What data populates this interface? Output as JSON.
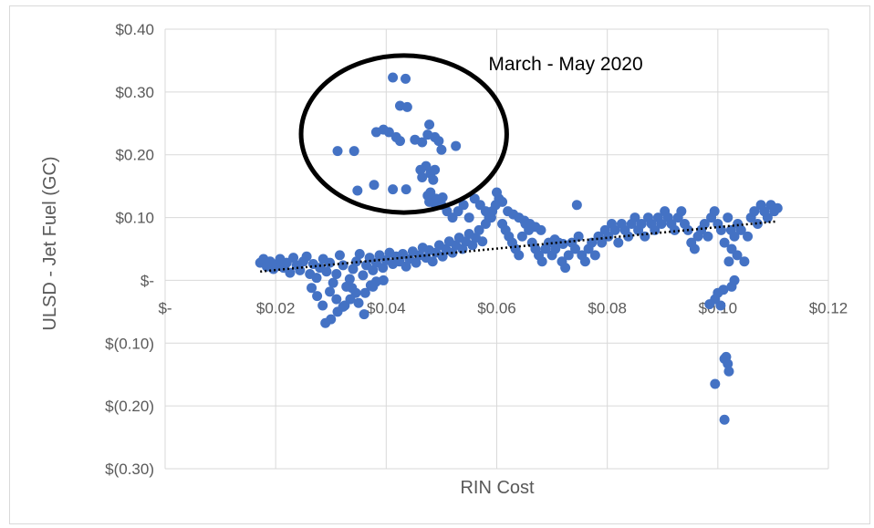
{
  "chart_data": {
    "type": "scatter",
    "title": "",
    "xlabel": "RIN Cost",
    "ylabel": "ULSD - Jet Fuel (GC)",
    "xlim": [
      0,
      0.12
    ],
    "ylim": [
      -0.3,
      0.4
    ],
    "x_ticks": [
      {
        "value": 0,
        "label": "$-"
      },
      {
        "value": 0.02,
        "label": "$0.02"
      },
      {
        "value": 0.04,
        "label": "$0.04"
      },
      {
        "value": 0.06,
        "label": "$0.06"
      },
      {
        "value": 0.08,
        "label": "$0.08"
      },
      {
        "value": 0.1,
        "label": "$0.10"
      },
      {
        "value": 0.12,
        "label": "$0.12"
      }
    ],
    "y_ticks": [
      {
        "value": 0.4,
        "label": "$0.40"
      },
      {
        "value": 0.3,
        "label": "$0.30"
      },
      {
        "value": 0.2,
        "label": "$0.20"
      },
      {
        "value": 0.1,
        "label": "$0.10"
      },
      {
        "value": 0,
        "label": "$-"
      },
      {
        "value": -0.1,
        "label": "$(0.10)"
      },
      {
        "value": -0.2,
        "label": "$(0.20)"
      },
      {
        "value": -0.3,
        "label": "$(0.30)"
      }
    ],
    "grid": {
      "vertical": true,
      "horizontal": true
    },
    "colors": {
      "points": "#4472c4",
      "trend": "#000000",
      "grid": "#d9d9d9",
      "circle": "#000000"
    },
    "series": [
      {
        "points": [
          [
            0.0172,
            0.028
          ],
          [
            0.0178,
            0.034
          ],
          [
            0.0184,
            0.022
          ],
          [
            0.019,
            0.03
          ],
          [
            0.0196,
            0.018
          ],
          [
            0.0202,
            0.026
          ],
          [
            0.0208,
            0.034
          ],
          [
            0.0214,
            0.02
          ],
          [
            0.022,
            0.028
          ],
          [
            0.0226,
            0.012
          ],
          [
            0.0232,
            0.036
          ],
          [
            0.0238,
            0.024
          ],
          [
            0.0244,
            0.016
          ],
          [
            0.025,
            0.03
          ],
          [
            0.0256,
            0.038
          ],
          [
            0.0262,
            0.01
          ],
          [
            0.0268,
            0.026
          ],
          [
            0.0274,
            0.004
          ],
          [
            0.028,
            0.02
          ],
          [
            0.0286,
            0.034
          ],
          [
            0.0292,
            0.014
          ],
          [
            0.0298,
            0.028
          ],
          [
            0.0304,
            -0.004
          ],
          [
            0.031,
            0.01
          ],
          [
            0.0316,
            0.04
          ],
          [
            0.0322,
            0.024
          ],
          [
            0.0328,
            -0.01
          ],
          [
            0.0334,
            0.002
          ],
          [
            0.034,
            0.018
          ],
          [
            0.0346,
            0.03
          ],
          [
            0.0352,
            0.042
          ],
          [
            0.0358,
            0.008
          ],
          [
            0.0364,
            0.024
          ],
          [
            0.037,
            0.036
          ],
          [
            0.0376,
            0.016
          ],
          [
            0.0382,
            0.028
          ],
          [
            0.0388,
            0.04
          ],
          [
            0.0394,
            0.02
          ],
          [
            0.04,
            0.032
          ],
          [
            0.0406,
            0.044
          ],
          [
            0.0412,
            0.026
          ],
          [
            0.0418,
            0.038
          ],
          [
            0.0424,
            0.03
          ],
          [
            0.043,
            0.042
          ],
          [
            0.0436,
            0.022
          ],
          [
            0.0442,
            0.034
          ],
          [
            0.0448,
            0.046
          ],
          [
            0.0454,
            0.028
          ],
          [
            0.046,
            0.04
          ],
          [
            0.0466,
            0.052
          ],
          [
            0.0472,
            0.036
          ],
          [
            0.0478,
            0.048
          ],
          [
            0.0484,
            0.03
          ],
          [
            0.049,
            0.044
          ],
          [
            0.0496,
            0.056
          ],
          [
            0.0502,
            0.038
          ],
          [
            0.0508,
            0.05
          ],
          [
            0.0514,
            0.062
          ],
          [
            0.052,
            0.044
          ],
          [
            0.0526,
            0.056
          ],
          [
            0.0532,
            0.068
          ],
          [
            0.0538,
            0.05
          ],
          [
            0.0544,
            0.062
          ],
          [
            0.055,
            0.074
          ],
          [
            0.0556,
            0.056
          ],
          [
            0.0562,
            0.068
          ],
          [
            0.0568,
            0.08
          ],
          [
            0.0574,
            0.062
          ],
          [
            0.058,
            0.09
          ],
          [
            0.0586,
            0.1
          ],
          [
            0.0592,
            0.11
          ],
          [
            0.0598,
            0.12
          ],
          [
            0.0604,
            0.13
          ],
          [
            0.061,
            0.09
          ],
          [
            0.0616,
            0.08
          ],
          [
            0.0622,
            0.07
          ],
          [
            0.0628,
            0.06
          ],
          [
            0.0634,
            0.05
          ],
          [
            0.064,
            0.04
          ],
          [
            0.0646,
            0.07
          ],
          [
            0.0652,
            0.09
          ],
          [
            0.0658,
            0.08
          ],
          [
            0.0664,
            0.06
          ],
          [
            0.067,
            0.05
          ],
          [
            0.0676,
            0.04
          ],
          [
            0.0682,
            0.03
          ],
          [
            0.0688,
            0.05
          ],
          [
            0.0694,
            0.06
          ],
          [
            0.07,
            0.04
          ],
          [
            0.0706,
            0.05
          ],
          [
            0.0712,
            0.06
          ],
          [
            0.0718,
            0.03
          ],
          [
            0.0724,
            0.02
          ],
          [
            0.073,
            0.04
          ],
          [
            0.0736,
            0.06
          ],
          [
            0.0742,
            0.05
          ],
          [
            0.0748,
            0.07
          ],
          [
            0.0754,
            0.04
          ],
          [
            0.076,
            0.03
          ],
          [
            0.0766,
            0.05
          ],
          [
            0.0772,
            0.06
          ],
          [
            0.0778,
            0.04
          ],
          [
            0.0784,
            0.07
          ],
          [
            0.079,
            0.06
          ],
          [
            0.0796,
            0.08
          ],
          [
            0.0802,
            0.07
          ],
          [
            0.0808,
            0.09
          ],
          [
            0.0814,
            0.08
          ],
          [
            0.082,
            0.06
          ],
          [
            0.0826,
            0.09
          ],
          [
            0.0832,
            0.08
          ],
          [
            0.0838,
            0.07
          ],
          [
            0.0844,
            0.09
          ],
          [
            0.085,
            0.1
          ],
          [
            0.0856,
            0.08
          ],
          [
            0.0862,
            0.09
          ],
          [
            0.0868,
            0.07
          ],
          [
            0.0874,
            0.1
          ],
          [
            0.088,
            0.09
          ],
          [
            0.0886,
            0.08
          ],
          [
            0.0892,
            0.1
          ],
          [
            0.0898,
            0.09
          ],
          [
            0.0904,
            0.11
          ],
          [
            0.091,
            0.1
          ],
          [
            0.0916,
            0.09
          ],
          [
            0.0922,
            0.08
          ],
          [
            0.0928,
            0.1
          ],
          [
            0.0934,
            0.11
          ],
          [
            0.094,
            0.09
          ],
          [
            0.0946,
            0.08
          ],
          [
            0.0952,
            0.06
          ],
          [
            0.0958,
            0.05
          ],
          [
            0.0964,
            0.07
          ],
          [
            0.097,
            0.08
          ],
          [
            0.0976,
            0.09
          ],
          [
            0.0982,
            0.07
          ],
          [
            0.0988,
            0.1
          ],
          [
            0.0994,
            0.11
          ],
          [
            0.1,
            0.09
          ],
          [
            0.1006,
            0.08
          ],
          [
            0.1012,
            0.06
          ],
          [
            0.1018,
            0.1
          ],
          [
            0.1024,
            0.08
          ],
          [
            0.103,
            0.07
          ],
          [
            0.1036,
            0.09
          ],
          [
            0.1042,
            0.08
          ],
          [
            0.1048,
            0.03
          ],
          [
            0.1054,
            0.07
          ],
          [
            0.106,
            0.1
          ],
          [
            0.1066,
            0.11
          ],
          [
            0.1072,
            0.09
          ],
          [
            0.1078,
            0.12
          ],
          [
            0.1084,
            0.11
          ],
          [
            0.109,
            0.1
          ],
          [
            0.1096,
            0.12
          ],
          [
            0.1102,
            0.11
          ],
          [
            0.1108,
            0.115
          ],
          [
            0.029,
            -0.068
          ],
          [
            0.03,
            -0.062
          ],
          [
            0.0312,
            -0.05
          ],
          [
            0.0325,
            -0.04
          ],
          [
            0.0335,
            -0.03
          ],
          [
            0.0345,
            -0.02
          ],
          [
            0.036,
            -0.054
          ],
          [
            0.0372,
            -0.008
          ],
          [
            0.0382,
            -0.002
          ],
          [
            0.0395,
            0.0
          ],
          [
            0.0265,
            -0.012
          ],
          [
            0.0275,
            -0.025
          ],
          [
            0.0285,
            -0.04
          ],
          [
            0.0298,
            -0.018
          ],
          [
            0.031,
            -0.03
          ],
          [
            0.0322,
            -0.042
          ],
          [
            0.0338,
            -0.012
          ],
          [
            0.035,
            -0.036
          ],
          [
            0.0362,
            -0.02
          ],
          [
            0.0376,
            -0.01
          ],
          [
            0.048,
            0.14
          ],
          [
            0.049,
            0.13
          ],
          [
            0.05,
            0.12
          ],
          [
            0.051,
            0.11
          ],
          [
            0.052,
            0.1
          ],
          [
            0.053,
            0.11
          ],
          [
            0.054,
            0.12
          ],
          [
            0.055,
            0.1
          ],
          [
            0.056,
            0.13
          ],
          [
            0.057,
            0.12
          ],
          [
            0.058,
            0.11
          ],
          [
            0.059,
            0.1
          ],
          [
            0.06,
            0.14
          ],
          [
            0.061,
            0.125
          ],
          [
            0.062,
            0.11
          ],
          [
            0.063,
            0.105
          ],
          [
            0.064,
            0.1
          ],
          [
            0.065,
            0.095
          ],
          [
            0.066,
            0.09
          ],
          [
            0.067,
            0.085
          ],
          [
            0.068,
            0.08
          ],
          [
            0.0745,
            0.12
          ],
          [
            0.0705,
            0.065
          ],
          [
            0.072,
            0.058
          ],
          [
            0.0995,
            -0.03
          ],
          [
            0.1,
            -0.02
          ],
          [
            0.1005,
            -0.04
          ],
          [
            0.101,
            -0.015
          ],
          [
            0.0985,
            -0.038
          ],
          [
            0.1012,
            -0.125
          ],
          [
            0.1018,
            -0.133
          ],
          [
            0.102,
            -0.145
          ],
          [
            0.1015,
            -0.122
          ],
          [
            0.0995,
            -0.165
          ],
          [
            0.1012,
            -0.222
          ],
          [
            0.1025,
            -0.01
          ],
          [
            0.103,
            0.0
          ],
          [
            0.102,
            0.03
          ],
          [
            0.1035,
            0.04
          ],
          [
            0.1025,
            0.05
          ],
          [
            0.0412,
            0.323
          ],
          [
            0.0435,
            0.321
          ],
          [
            0.0425,
            0.278
          ],
          [
            0.0438,
            0.276
          ],
          [
            0.0478,
            0.248
          ],
          [
            0.0452,
            0.224
          ],
          [
            0.0465,
            0.22
          ],
          [
            0.0475,
            0.232
          ],
          [
            0.0488,
            0.228
          ],
          [
            0.0495,
            0.222
          ],
          [
            0.05,
            0.208
          ],
          [
            0.0526,
            0.214
          ],
          [
            0.0382,
            0.236
          ],
          [
            0.0395,
            0.24
          ],
          [
            0.0405,
            0.236
          ],
          [
            0.0418,
            0.228
          ],
          [
            0.0425,
            0.222
          ],
          [
            0.0312,
            0.206
          ],
          [
            0.0342,
            0.206
          ],
          [
            0.0472,
            0.182
          ],
          [
            0.048,
            0.17
          ],
          [
            0.0465,
            0.164
          ],
          [
            0.0462,
            0.176
          ],
          [
            0.0488,
            0.176
          ],
          [
            0.0485,
            0.16
          ],
          [
            0.0348,
            0.143
          ],
          [
            0.0378,
            0.152
          ],
          [
            0.0412,
            0.145
          ],
          [
            0.0436,
            0.145
          ],
          [
            0.0478,
            0.125
          ],
          [
            0.0492,
            0.128
          ],
          [
            0.0502,
            0.132
          ],
          [
            0.0488,
            0.122
          ],
          [
            0.0475,
            0.135
          ]
        ]
      }
    ],
    "trendline": {
      "x": [
        0.0172,
        0.1108
      ],
      "y": [
        0.014,
        0.094
      ],
      "style": "dotted"
    },
    "annotations": [
      {
        "text": "March - May 2020",
        "x": 0.0585,
        "y": 0.335
      }
    ],
    "highlight_circle": {
      "cx": 0.0432,
      "cy": 0.233,
      "rx": 0.0186,
      "ry": 0.125
    }
  }
}
